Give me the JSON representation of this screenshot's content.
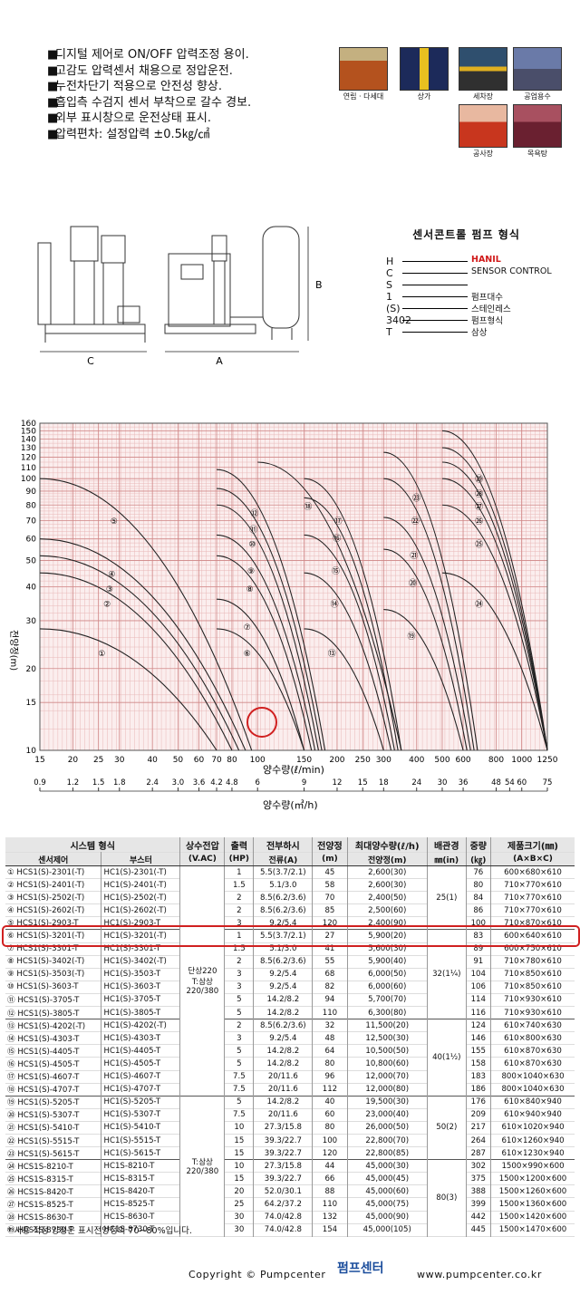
{
  "features": [
    "디지털 제어로 ON/OFF 압력조정 용이.",
    "고감도 압력센서 채용으로 정압운전.",
    "누전차단기 적용으로 안전성 향상.",
    "흡입측 수검지 센서 부착으로 갈수 경보.",
    "외부 표시창으로 운전상태 표시.",
    "압력편차: 설정압력 ±0.5㎏/㎠"
  ],
  "bullet": "■",
  "applications": [
    {
      "label": "연립 · 다세대",
      "icon": "apartment-icon",
      "color": "#b4521e"
    },
    {
      "label": "상가",
      "icon": "building-icon",
      "color": "#1c2a5a"
    },
    {
      "label": "세차장",
      "icon": "carwash-icon",
      "color": "#2f4f6e"
    },
    {
      "label": "공업용수",
      "icon": "factory-icon",
      "color": "#4a4e6a"
    },
    {
      "label": "공사장",
      "icon": "construction-icon",
      "color": "#c8361e"
    },
    {
      "label": "목욕탕",
      "icon": "bathhouse-icon",
      "color": "#6a2030"
    }
  ],
  "dimensions": {
    "a": "A",
    "b": "B",
    "c": "C"
  },
  "model_legend": {
    "title": "센서콘트롤 펌프 형식",
    "rows": [
      {
        "code": "H",
        "desc": "HANIL",
        "accent": "#d01818"
      },
      {
        "code": "C",
        "desc": "SENSOR CONTROL"
      },
      {
        "code": "S",
        "desc": ""
      },
      {
        "code": "1",
        "desc": "펌프대수"
      },
      {
        "code": "(S)",
        "desc": "스테인레스"
      },
      {
        "code": "3402",
        "desc": "펌프형식"
      },
      {
        "code": "T",
        "desc": "삼상"
      }
    ]
  },
  "chart_data": {
    "type": "line",
    "title": "",
    "ylabel": "전양정(m)",
    "xlabel_lpm": "양수량(ℓ/min)",
    "xlabel_m3h": "양수량(㎥/h)",
    "y_ticks": [
      10,
      15,
      20,
      30,
      40,
      50,
      60,
      70,
      80,
      90,
      100,
      110,
      120,
      130,
      140,
      150,
      160
    ],
    "x_ticks_lpm": [
      "15",
      "20",
      "25",
      "30",
      "40",
      "50",
      "60",
      "70",
      "80",
      "100",
      "150",
      "200",
      "250",
      "300",
      "400",
      "500",
      "600",
      "800",
      "1000",
      "1250"
    ],
    "x_ticks_m3h": [
      "0.9",
      "1.2",
      "1.5",
      "1.8",
      "2.4",
      "3.0",
      "3.6",
      "4.2",
      "4.8",
      "6",
      "9",
      "12",
      "15",
      "18",
      "24",
      "30",
      "36",
      "48",
      "54",
      "60",
      "75"
    ],
    "curves": [
      {
        "name": "①",
        "x": [
          15,
          70
        ],
        "y": [
          28,
          10
        ]
      },
      {
        "name": "②",
        "x": [
          15,
          80
        ],
        "y": [
          45,
          10
        ]
      },
      {
        "name": "③",
        "x": [
          15,
          85
        ],
        "y": [
          52,
          10
        ]
      },
      {
        "name": "④",
        "x": [
          15,
          90
        ],
        "y": [
          60,
          10
        ]
      },
      {
        "name": "⑤",
        "x": [
          15,
          95
        ],
        "y": [
          100,
          10
        ]
      },
      {
        "name": "⑥",
        "x": [
          70,
          150
        ],
        "y": [
          28,
          10
        ]
      },
      {
        "name": "⑦",
        "x": [
          70,
          150
        ],
        "y": [
          36,
          10
        ]
      },
      {
        "name": "⑧",
        "x": [
          70,
          160
        ],
        "y": [
          52,
          10
        ]
      },
      {
        "name": "⑨",
        "x": [
          70,
          165
        ],
        "y": [
          62,
          10
        ]
      },
      {
        "name": "⑩",
        "x": [
          70,
          170
        ],
        "y": [
          80,
          10
        ]
      },
      {
        "name": "⑪",
        "x": [
          70,
          175
        ],
        "y": [
          92,
          10
        ]
      },
      {
        "name": "⑫",
        "x": [
          70,
          180
        ],
        "y": [
          108,
          10
        ]
      },
      {
        "name": "⑬",
        "x": [
          150,
          300
        ],
        "y": [
          28,
          10
        ]
      },
      {
        "name": "⑭",
        "x": [
          150,
          320
        ],
        "y": [
          45,
          10
        ]
      },
      {
        "name": "⑮",
        "x": [
          150,
          330
        ],
        "y": [
          62,
          10
        ]
      },
      {
        "name": "⑯",
        "x": [
          150,
          340
        ],
        "y": [
          85,
          10
        ]
      },
      {
        "name": "⑰",
        "x": [
          150,
          350
        ],
        "y": [
          100,
          10
        ]
      },
      {
        "name": "⑱",
        "x": [
          100,
          350
        ],
        "y": [
          115,
          10
        ]
      },
      {
        "name": "⑲",
        "x": [
          300,
          600
        ],
        "y": [
          33,
          10
        ]
      },
      {
        "name": "⑳",
        "x": [
          300,
          620
        ],
        "y": [
          55,
          10
        ]
      },
      {
        "name": "㉑",
        "x": [
          300,
          640
        ],
        "y": [
          72,
          10
        ]
      },
      {
        "name": "㉒",
        "x": [
          300,
          660
        ],
        "y": [
          100,
          10
        ]
      },
      {
        "name": "㉓",
        "x": [
          300,
          680
        ],
        "y": [
          125,
          10
        ]
      },
      {
        "name": "㉔",
        "x": [
          500,
          1250
        ],
        "y": [
          45,
          10
        ]
      },
      {
        "name": "㉕",
        "x": [
          500,
          1250
        ],
        "y": [
          80,
          10
        ]
      },
      {
        "name": "㉖",
        "x": [
          500,
          1250
        ],
        "y": [
          100,
          10
        ]
      },
      {
        "name": "㉗",
        "x": [
          500,
          1250
        ],
        "y": [
          115,
          10
        ]
      },
      {
        "name": "㉘",
        "x": [
          500,
          1250
        ],
        "y": [
          130,
          10
        ]
      },
      {
        "name": "㉙",
        "x": [
          500,
          1250
        ],
        "y": [
          150,
          10
        ]
      }
    ],
    "grid": true,
    "highlight": "⑥"
  },
  "table": {
    "headers": [
      "시스템 형식",
      "상수전압",
      "출력",
      "전부하시",
      "전양정",
      "최대양수량(ℓ/h)",
      "배관경",
      "중량",
      "제품크기(㎜)"
    ],
    "subheaders": [
      "센서제어",
      "부스터",
      "(V.AC)",
      "(HP)",
      "전류(A)",
      "(m)",
      "전양정(m)",
      "㎜(in)",
      "(㎏)",
      "(A×B×C)"
    ],
    "rows": [
      [
        "① HCS1(S)-2301(-T)",
        "HC1(S)-2301(-T)",
        "1",
        "5.5(3.7/2.1)",
        "45",
        "2,600(30)",
        "76",
        "600×680×610"
      ],
      [
        "② HCS1(S)-2401(-T)",
        "HC1(S)-2401(-T)",
        "1.5",
        "5.1/3.0",
        "58",
        "2,600(30)",
        "80",
        "710×770×610"
      ],
      [
        "③ HCS1(S)-2502(-T)",
        "HC1(S)-2502(-T)",
        "2",
        "8.5(6.2/3.6)",
        "70",
        "2,400(50)",
        "84",
        "710×770×610"
      ],
      [
        "④ HCS1(S)-2602(-T)",
        "HC1(S)-2602(-T)",
        "2",
        "8.5(6.2/3.6)",
        "85",
        "2,500(60)",
        "86",
        "710×770×610"
      ],
      [
        "⑤ HCS1(S)-2903-T",
        "HC1(S)-2903-T",
        "3",
        "9.2/5.4",
        "120",
        "2,400(90)",
        "100",
        "710×870×610"
      ],
      [
        "⑥ HCS1(S)-3201(-T)",
        "HC1(S)-3201(-T)",
        "1",
        "5.5(3.7/2.1)",
        "27",
        "5,900(20)",
        "83",
        "600×640×610"
      ],
      [
        "⑦ HCS1(S)-3301-T",
        "HC1(S)-3301-T",
        "1.5",
        "5.1/3.0",
        "41",
        "5,600(30)",
        "89",
        "600×750×610"
      ],
      [
        "⑧ HCS1(S)-3402(-T)",
        "HC1(S)-3402(-T)",
        "2",
        "8.5(6.2/3.6)",
        "55",
        "5,900(40)",
        "91",
        "710×780×610"
      ],
      [
        "⑨ HCS1(S)-3503(-T)",
        "HC1(S)-3503-T",
        "3",
        "9.2/5.4",
        "68",
        "6,000(50)",
        "104",
        "710×850×610"
      ],
      [
        "⑩ HCS1(S)-3603-T",
        "HC1(S)-3603-T",
        "3",
        "9.2/5.4",
        "82",
        "6,000(60)",
        "106",
        "710×850×610"
      ],
      [
        "⑪ HCS1(S)-3705-T",
        "HC1(S)-3705-T",
        "5",
        "14.2/8.2",
        "94",
        "5,700(70)",
        "114",
        "710×930×610"
      ],
      [
        "⑫ HCS1(S)-3805-T",
        "HC1(S)-3805-T",
        "5",
        "14.2/8.2",
        "110",
        "6,300(80)",
        "116",
        "710×930×610"
      ],
      [
        "⑬ HCS1(S)-4202(-T)",
        "HC1(S)-4202(-T)",
        "2",
        "8.5(6.2/3.6)",
        "32",
        "11,500(20)",
        "124",
        "610×740×630"
      ],
      [
        "⑭ HCS1(S)-4303-T",
        "HC1(S)-4303-T",
        "3",
        "9.2/5.4",
        "48",
        "12,500(30)",
        "146",
        "610×800×630"
      ],
      [
        "⑮ HCS1(S)-4405-T",
        "HC1(S)-4405-T",
        "5",
        "14.2/8.2",
        "64",
        "10,500(50)",
        "155",
        "610×870×630"
      ],
      [
        "⑯ HCS1(S)-4505-T",
        "HC1(S)-4505-T",
        "5",
        "14.2/8.2",
        "80",
        "10,800(60)",
        "158",
        "610×870×630"
      ],
      [
        "⑰ HCS1(S)-4607-T",
        "HC1(S)-4607-T",
        "7.5",
        "20/11.6",
        "96",
        "12,000(70)",
        "183",
        "800×1040×630"
      ],
      [
        "⑱ HCS1(S)-4707-T",
        "HC1(S)-4707-T",
        "7.5",
        "20/11.6",
        "112",
        "12,000(80)",
        "186",
        "800×1040×630"
      ],
      [
        "⑲ HCS1(S)-5205-T",
        "HC1(S)-5205-T",
        "5",
        "14.2/8.2",
        "40",
        "19,500(30)",
        "176",
        "610×840×940"
      ],
      [
        "⑳ HCS1(S)-5307-T",
        "HC1(S)-5307-T",
        "7.5",
        "20/11.6",
        "60",
        "23,000(40)",
        "209",
        "610×940×940"
      ],
      [
        "㉑ HCS1(S)-5410-T",
        "HC1(S)-5410-T",
        "10",
        "27.3/15.8",
        "80",
        "26,000(50)",
        "217",
        "610×1020×940"
      ],
      [
        "㉒ HCS1(S)-5515-T",
        "HC1(S)-5515-T",
        "15",
        "39.3/22.7",
        "100",
        "22,800(70)",
        "264",
        "610×1260×940"
      ],
      [
        "㉓ HCS1(S)-5615-T",
        "HC1(S)-5615-T",
        "15",
        "39.3/22.7",
        "120",
        "22,800(85)",
        "287",
        "610×1230×940"
      ],
      [
        "㉔ HCS1S-8210-T",
        "HC1S-8210-T",
        "10",
        "27.3/15.8",
        "44",
        "45,000(30)",
        "302",
        "1500×990×600"
      ],
      [
        "㉕ HCS1S-8315-T",
        "HC1S-8315-T",
        "15",
        "39.3/22.7",
        "66",
        "45,000(45)",
        "375",
        "1500×1200×600"
      ],
      [
        "㉖ HCS1S-8420-T",
        "HC1S-8420-T",
        "20",
        "52.0/30.1",
        "88",
        "45,000(60)",
        "388",
        "1500×1260×600"
      ],
      [
        "㉗ HCS1S-8525-T",
        "HC1S-8525-T",
        "25",
        "64.2/37.2",
        "110",
        "45,000(75)",
        "399",
        "1500×1360×600"
      ],
      [
        "㉘ HCS1S-8630-T",
        "HC1S-8630-T",
        "30",
        "74.0/42.8",
        "132",
        "45,000(90)",
        "442",
        "1500×1420×600"
      ],
      [
        "㉙ HCS1S-8730-T",
        "HC1S-8730-T",
        "30",
        "74.0/42.8",
        "154",
        "45,000(105)",
        "445",
        "1500×1470×600"
      ]
    ],
    "voltage_groups": [
      {
        "label1": "단상220",
        "label2": "T:삼상",
        "label3": "220/380"
      },
      {
        "label1": "T:삼상",
        "label2": "220/380"
      }
    ],
    "pipe_groups": [
      "25(1)",
      "32(1¼)",
      "40(1½)",
      "50(2)",
      "80(3)"
    ]
  },
  "footnote": "* 사용 적정 양정은 표시전양정의 70~80%입니다.",
  "copyright": "Copyright © Pumpcenter",
  "logo_text": "펌프센터",
  "url": "www.pumpcenter.co.kr"
}
